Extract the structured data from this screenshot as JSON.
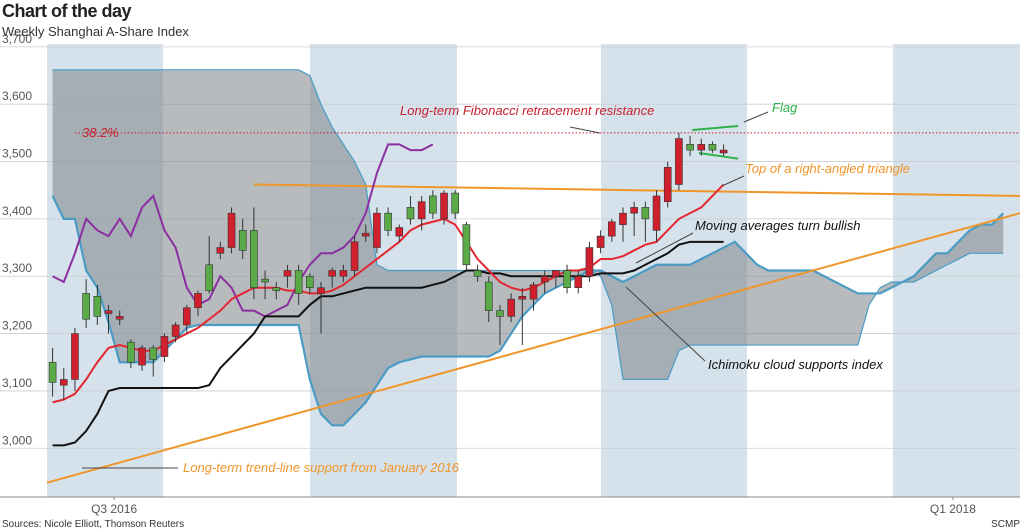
{
  "chart_data": {
    "type": "candlestick",
    "title": "Chart of the day",
    "subtitle": "Weekly Shanghai A-Share Index",
    "source": "Sources: Nicole Elliott, Thomson Reuters",
    "credit": "SCMP",
    "xlim": [
      0,
      87
    ],
    "ylim": [
      2915,
      3705
    ],
    "yticks": [
      {
        "value": 3000,
        "label": "3,000"
      },
      {
        "value": 3100,
        "label": "3,100"
      },
      {
        "value": 3200,
        "label": "3,200"
      },
      {
        "value": 3300,
        "label": "3,300"
      },
      {
        "value": 3400,
        "label": "3,400"
      },
      {
        "value": 3500,
        "label": "3,500"
      },
      {
        "value": 3600,
        "label": "3,600"
      },
      {
        "value": 3700,
        "label": "3,700"
      }
    ],
    "xticks": [
      {
        "value": 6,
        "label": "Q3 2016"
      },
      {
        "value": 81,
        "label": "Q1 2018"
      }
    ],
    "grid": true,
    "up_color": "#d0202e",
    "down_color": "#5aaa48",
    "x": [
      0.5,
      1.5,
      2.5,
      3.5,
      4.5,
      5.5,
      6.5,
      7.5,
      8.5,
      9.5,
      10.5,
      11.5,
      12.5,
      13.5,
      14.5,
      15.5,
      16.5,
      17.5,
      18.5,
      19.5,
      20.5,
      21.5,
      22.5,
      23.5,
      24.5,
      25.5,
      26.5,
      27.5,
      28.5,
      29.5,
      30.5,
      31.5,
      32.5,
      33.5,
      34.5,
      35.5,
      36.5,
      37.5,
      38.5,
      39.5,
      40.5,
      41.5,
      42.5,
      43.5,
      44.5,
      45.5,
      46.5,
      47.5,
      48.5,
      49.5,
      50.5,
      51.5,
      52.5,
      53.5,
      54.5,
      55.5,
      56.5,
      57.5,
      58.5,
      59.5,
      60.5
    ],
    "open": [
      3150,
      3110,
      3120,
      3270,
      3265,
      3235,
      3225,
      3185,
      3145,
      3175,
      3160,
      3195,
      3215,
      3245,
      3320,
      3340,
      3350,
      3380,
      3380,
      3295,
      3280,
      3300,
      3310,
      3300,
      3270,
      3300,
      3300,
      3310,
      3370,
      3350,
      3410,
      3370,
      3420,
      3400,
      3440,
      3400,
      3445,
      3390,
      3310,
      3290,
      3240,
      3230,
      3260,
      3260,
      3290,
      3300,
      3310,
      3280,
      3300,
      3350,
      3370,
      3390,
      3410,
      3420,
      3380,
      3430,
      3460,
      3530,
      3520,
      3530,
      3515
    ],
    "high": [
      3175,
      3140,
      3210,
      3295,
      3285,
      3250,
      3240,
      3190,
      3180,
      3180,
      3200,
      3220,
      3250,
      3275,
      3370,
      3360,
      3420,
      3400,
      3420,
      3310,
      3290,
      3320,
      3320,
      3305,
      3290,
      3315,
      3320,
      3370,
      3390,
      3420,
      3420,
      3390,
      3440,
      3440,
      3450,
      3450,
      3450,
      3395,
      3320,
      3300,
      3250,
      3270,
      3280,
      3290,
      3310,
      3310,
      3320,
      3310,
      3360,
      3380,
      3400,
      3420,
      3430,
      3430,
      3450,
      3500,
      3550,
      3545,
      3540,
      3535,
      3530
    ],
    "low": [
      3090,
      3085,
      3100,
      3210,
      3215,
      3200,
      3215,
      3140,
      3135,
      3125,
      3150,
      3185,
      3200,
      3230,
      3270,
      3330,
      3340,
      3330,
      3260,
      3260,
      3260,
      3280,
      3250,
      3270,
      3200,
      3280,
      3290,
      3300,
      3360,
      3340,
      3370,
      3360,
      3390,
      3380,
      3400,
      3390,
      3400,
      3310,
      3290,
      3220,
      3180,
      3220,
      3180,
      3240,
      3270,
      3280,
      3270,
      3270,
      3290,
      3340,
      3360,
      3360,
      3370,
      3360,
      3360,
      3420,
      3450,
      3510,
      3510,
      3515,
      3510
    ],
    "close": [
      3115,
      3120,
      3200,
      3225,
      3230,
      3240,
      3230,
      3150,
      3175,
      3155,
      3195,
      3215,
      3245,
      3270,
      3275,
      3350,
      3410,
      3345,
      3280,
      3290,
      3275,
      3310,
      3270,
      3280,
      3280,
      3310,
      3310,
      3360,
      3375,
      3410,
      3380,
      3385,
      3400,
      3430,
      3410,
      3445,
      3410,
      3320,
      3300,
      3240,
      3230,
      3260,
      3265,
      3285,
      3300,
      3310,
      3280,
      3300,
      3350,
      3370,
      3395,
      3410,
      3420,
      3400,
      3440,
      3490,
      3540,
      3520,
      3530,
      3520,
      3520
    ],
    "lines": [
      {
        "color": "#8b2fa0",
        "values": [
          3300,
          3290,
          3340,
          3400,
          3380,
          3370,
          3400,
          3370,
          3420,
          3440,
          3380,
          3350,
          3280,
          3250,
          3260,
          3300,
          3280,
          3240,
          3240,
          3230,
          3240,
          3250,
          3290,
          3320,
          3340,
          3340,
          3350,
          3370,
          3410,
          3480,
          3530,
          3530,
          3520,
          3520,
          3530,
          null,
          null,
          null,
          null,
          null,
          null,
          null,
          null,
          null,
          null,
          null,
          null,
          null,
          null,
          null,
          null,
          null,
          null,
          null,
          null,
          null,
          null,
          null,
          null,
          null,
          null
        ]
      },
      {
        "color": "#111111",
        "values": [
          3005,
          3005,
          3010,
          3030,
          3060,
          3100,
          3105,
          3105,
          3105,
          3105,
          3105,
          3105,
          3105,
          3105,
          3110,
          3140,
          3160,
          3180,
          3200,
          3230,
          3230,
          3230,
          3230,
          3250,
          3265,
          3265,
          3270,
          3275,
          3280,
          3280,
          3280,
          3280,
          3280,
          3280,
          3285,
          3290,
          3300,
          3310,
          3310,
          3305,
          3305,
          3300,
          3300,
          3300,
          3300,
          3300,
          3300,
          3300,
          3300,
          3305,
          3305,
          3305,
          3310,
          3320,
          3330,
          3340,
          3355,
          3360,
          3360,
          3360,
          3360
        ]
      },
      {
        "color": "#e3262f",
        "values": [
          3080,
          3085,
          3095,
          3120,
          3150,
          3175,
          3180,
          3175,
          3170,
          3170,
          3180,
          3190,
          3200,
          3210,
          3225,
          3240,
          3260,
          3270,
          3280,
          3280,
          3280,
          3275,
          3275,
          3270,
          3270,
          3275,
          3285,
          3300,
          3315,
          3330,
          3345,
          3360,
          3380,
          3390,
          3395,
          3400,
          3390,
          3360,
          3330,
          3310,
          3290,
          3280,
          3275,
          3280,
          3290,
          3300,
          3310,
          3310,
          3315,
          3330,
          3330,
          3335,
          3345,
          3355,
          3360,
          3380,
          3400,
          3410,
          3420,
          3440,
          3460
        ]
      }
    ],
    "cloud": {
      "fill": "#7d8389",
      "edge_color": "#4a9cc4",
      "x": [
        0.5,
        1.5,
        2.5,
        3.5,
        4.5,
        5.5,
        6.5,
        7.5,
        8.5,
        9.5,
        10.5,
        11.5,
        12.5,
        13.5,
        14.5,
        15.5,
        16.5,
        17.5,
        18.5,
        19.5,
        20.5,
        21.5,
        22.5,
        23.5,
        24.5,
        25.5,
        26.5,
        27.5,
        28.5,
        29.5,
        30.5,
        31.5,
        32.5,
        33.5,
        34.5,
        35.5,
        36.5,
        37.5,
        38.5,
        39.5,
        40.5,
        41.5,
        42.5,
        43.5,
        44.5,
        45.5,
        46.5,
        47.5,
        48.5,
        49.5,
        50.5,
        51.5,
        52.5,
        53.5,
        54.5,
        55.5,
        56.5,
        57.5,
        58.5,
        59.5,
        60.5,
        61.5,
        62.5,
        63.5,
        64.5,
        65.5,
        66.5,
        67.5,
        68.5,
        69.5,
        70.5,
        71.5,
        72.5,
        73.5,
        74.5,
        75.5,
        76.5,
        77.5,
        78.5,
        79.5,
        80.5,
        81.5,
        82.5,
        83.5,
        84.5,
        85.5
      ],
      "span_a": [
        3440,
        3400,
        3400,
        3310,
        3280,
        3220,
        3150,
        3150,
        3150,
        3150,
        3170,
        3190,
        3210,
        3215,
        3215,
        3215,
        3215,
        3215,
        3215,
        3215,
        3215,
        3215,
        3215,
        3120,
        3060,
        3040,
        3040,
        3060,
        3080,
        3110,
        3140,
        3150,
        3155,
        3160,
        3160,
        3160,
        3160,
        3160,
        3160,
        3160,
        3170,
        3200,
        3230,
        3250,
        3270,
        3280,
        3290,
        3300,
        3310,
        3310,
        3300,
        3290,
        3300,
        3310,
        3320,
        3320,
        3320,
        3320,
        3330,
        3340,
        3350,
        3360,
        3340,
        3320,
        3310,
        3310,
        3310,
        3310,
        3310,
        3300,
        3290,
        3280,
        3270,
        3270,
        3270,
        3280,
        3290,
        3300,
        3320,
        3340,
        3340,
        3360,
        3380,
        3390,
        3390,
        3410
      ],
      "span_b": [
        3660,
        3660,
        3660,
        3660,
        3660,
        3660,
        3660,
        3660,
        3660,
        3660,
        3660,
        3660,
        3660,
        3660,
        3660,
        3660,
        3660,
        3660,
        3660,
        3660,
        3660,
        3660,
        3660,
        3650,
        3600,
        3560,
        3530,
        3500,
        3460,
        3320,
        3310,
        3310,
        3310,
        3310,
        3310,
        3310,
        3310,
        3310,
        3310,
        3310,
        3310,
        3310,
        3310,
        3310,
        3310,
        3310,
        3310,
        3310,
        3310,
        3300,
        3250,
        3120,
        3120,
        3120,
        3120,
        3120,
        3170,
        3180,
        3180,
        3180,
        3180,
        3180,
        3180,
        3180,
        3180,
        3180,
        3180,
        3180,
        3180,
        3180,
        3180,
        3180,
        3180,
        3250,
        3280,
        3290,
        3290,
        3290,
        3300,
        3310,
        3320,
        3330,
        3340,
        3340,
        3340,
        3340
      ]
    },
    "trend_lines": [
      {
        "color": "#f0952a",
        "x": [
          0,
          87
        ],
        "y": [
          2940,
          3410
        ]
      },
      {
        "color": "#f0952a",
        "x": [
          18.5,
          87
        ],
        "y": [
          3460,
          3440
        ]
      },
      {
        "color": "#2db24a",
        "x": [
          57.7,
          61.8
        ],
        "y": [
          3555,
          3562
        ]
      },
      {
        "color": "#2db24a",
        "x": [
          58.3,
          61.8
        ],
        "y": [
          3515,
          3505
        ]
      }
    ],
    "fib_level": 3550,
    "fib_label": "38.2%",
    "fib_color": "#c8202f",
    "annotations": [
      {
        "text": "Long-term Fibonacci retracement resistance",
        "color": "#c8202f"
      },
      {
        "text": "Flag",
        "color": "#2db24a"
      },
      {
        "text": "Top of a right-angled triangle",
        "color": "#f0952a"
      },
      {
        "text": "Moving averages turn bullish",
        "color": "#111111"
      },
      {
        "text": "Ichimoku cloud supports index",
        "color": "#111111"
      },
      {
        "text": "Long-term trend-line support from January 2016",
        "color": "#f0952a"
      }
    ]
  }
}
